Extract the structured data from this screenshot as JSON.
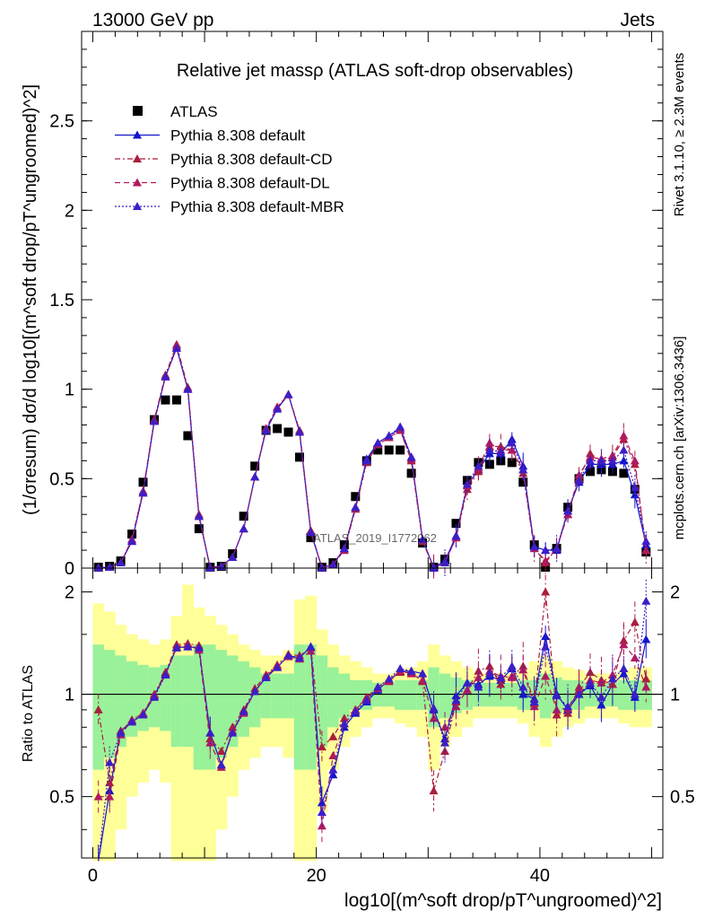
{
  "header": {
    "left": "13000 GeV pp",
    "right": "Jets"
  },
  "side": {
    "rivet": "Rivet 3.1.10, ≥ 2.3M events",
    "mcplots": "mcplots.cern.ch [arXiv:1306.3436]"
  },
  "watermark": "ATLAS_2019_I1772062",
  "chart_data": [
    {
      "type": "scatter",
      "title": "Relative jet massρ (ATLAS soft-drop observables)",
      "xlabel": "log10[(m^soft drop/pT^ungroomed)^2]",
      "ylabel": "(1/σresum) dσ/d log10[(m^soft drop/pT^ungroomed)^2]",
      "xlim": [
        -1,
        51
      ],
      "ylim": [
        0,
        3
      ],
      "yticks": [
        0,
        0.5,
        1,
        1.5,
        2,
        2.5
      ],
      "ytick_labels": [
        "0",
        "0.5",
        "1",
        "1.5",
        "2",
        "2.5"
      ],
      "legend_position": "top-left",
      "x": [
        0.5,
        1.5,
        2.5,
        3.5,
        4.5,
        5.5,
        6.5,
        7.5,
        8.5,
        9.5,
        10.5,
        11.5,
        12.5,
        13.5,
        14.5,
        15.5,
        16.5,
        17.5,
        18.5,
        19.5,
        20.5,
        21.5,
        22.5,
        23.5,
        24.5,
        25.5,
        26.5,
        27.5,
        28.5,
        29.5,
        30.5,
        31.5,
        32.5,
        33.5,
        34.5,
        35.5,
        36.5,
        37.5,
        38.5,
        39.5,
        40.5,
        41.5,
        42.5,
        43.5,
        44.5,
        45.5,
        46.5,
        47.5,
        48.5,
        49.5
      ],
      "series": [
        {
          "name": "ATLAS",
          "color": "#000000",
          "marker": "square",
          "values": [
            0.005,
            0.01,
            0.04,
            0.19,
            0.48,
            0.83,
            0.94,
            0.94,
            0.74,
            0.22,
            0.005,
            0.01,
            0.08,
            0.29,
            0.57,
            0.77,
            0.78,
            0.76,
            0.62,
            0.17,
            0.005,
            0.03,
            0.13,
            0.4,
            0.6,
            0.66,
            0.66,
            0.66,
            0.53,
            0.14,
            0.005,
            0.05,
            0.25,
            0.49,
            0.59,
            0.58,
            0.6,
            0.59,
            0.48,
            0.13,
            0.005,
            0.11,
            0.34,
            0.5,
            0.54,
            0.55,
            0.54,
            0.53,
            0.44,
            0.09
          ]
        },
        {
          "name": "Pythia 8.308 default",
          "color": "#1414cc",
          "marker": "triangle",
          "dash": "",
          "values": [
            0.002,
            0.005,
            0.03,
            0.15,
            0.42,
            0.82,
            1.07,
            1.23,
            1.0,
            0.29,
            0.002,
            0.01,
            0.06,
            0.22,
            0.51,
            0.77,
            0.89,
            0.97,
            0.76,
            0.2,
            0.002,
            0.02,
            0.11,
            0.34,
            0.61,
            0.7,
            0.74,
            0.78,
            0.62,
            0.16,
            0.002,
            0.04,
            0.18,
            0.46,
            0.55,
            0.64,
            0.64,
            0.72,
            0.57,
            0.12,
            0.1,
            0.1,
            0.32,
            0.48,
            0.58,
            0.58,
            0.58,
            0.6,
            0.41,
            0.13
          ]
        },
        {
          "name": "Pythia 8.308 default-CD",
          "color": "#aa1e3c",
          "marker": "triangle",
          "dash": "6,3,2,3",
          "values": [
            0.002,
            0.005,
            0.03,
            0.16,
            0.43,
            0.83,
            1.08,
            1.25,
            1.01,
            0.3,
            0.002,
            0.01,
            0.06,
            0.22,
            0.51,
            0.78,
            0.9,
            0.97,
            0.77,
            0.21,
            0.002,
            0.02,
            0.1,
            0.33,
            0.59,
            0.69,
            0.73,
            0.77,
            0.6,
            0.15,
            0.002,
            0.03,
            0.17,
            0.44,
            0.54,
            0.68,
            0.68,
            0.66,
            0.53,
            0.11,
            0.03,
            0.11,
            0.3,
            0.5,
            0.64,
            0.6,
            0.62,
            0.72,
            0.58,
            0.1
          ]
        },
        {
          "name": "Pythia 8.308 default-DL",
          "color": "#b01a5e",
          "marker": "triangle",
          "dash": "6,4",
          "values": [
            0.002,
            0.005,
            0.03,
            0.16,
            0.43,
            0.82,
            1.07,
            1.24,
            1.0,
            0.29,
            0.002,
            0.01,
            0.06,
            0.22,
            0.51,
            0.78,
            0.9,
            0.97,
            0.76,
            0.2,
            0.002,
            0.02,
            0.1,
            0.34,
            0.6,
            0.69,
            0.73,
            0.77,
            0.61,
            0.16,
            0.002,
            0.03,
            0.17,
            0.46,
            0.56,
            0.7,
            0.66,
            0.66,
            0.55,
            0.11,
            0.04,
            0.11,
            0.3,
            0.52,
            0.62,
            0.61,
            0.63,
            0.74,
            0.6,
            0.1
          ]
        },
        {
          "name": "Pythia 8.308 default-MBR",
          "color": "#3c1ec8",
          "marker": "triangle",
          "dash": "2,2",
          "values": [
            0.002,
            0.005,
            0.03,
            0.15,
            0.42,
            0.82,
            1.07,
            1.23,
            1.0,
            0.29,
            0.002,
            0.01,
            0.06,
            0.22,
            0.51,
            0.77,
            0.89,
            0.97,
            0.76,
            0.2,
            0.002,
            0.02,
            0.11,
            0.34,
            0.6,
            0.7,
            0.74,
            0.79,
            0.62,
            0.16,
            0.002,
            0.03,
            0.18,
            0.47,
            0.57,
            0.66,
            0.65,
            0.7,
            0.55,
            0.12,
            0.1,
            0.11,
            0.32,
            0.49,
            0.6,
            0.6,
            0.6,
            0.66,
            0.45,
            0.15
          ]
        }
      ]
    },
    {
      "type": "line",
      "ylabel": "Ratio to ATLAS",
      "xlim": [
        -1,
        51
      ],
      "ylim": [
        0.33,
        2.35
      ],
      "yscale": "log",
      "yticks": [
        0.5,
        1,
        2
      ],
      "ytick_labels": [
        "0.5",
        "1",
        "2"
      ],
      "xticks": [
        0,
        20,
        40
      ],
      "xtick_labels": [
        "0",
        "20",
        "40"
      ],
      "reference_line": 1,
      "band_colors": {
        "inner": "#99f199",
        "outer": "#ffff99"
      },
      "band_inner": [
        0.4,
        0.35,
        0.3,
        0.25,
        0.22,
        0.2,
        0.22,
        0.3,
        0.3,
        0.4,
        0.4,
        0.35,
        0.3,
        0.25,
        0.2,
        0.15,
        0.15,
        0.15,
        0.4,
        0.4,
        0.3,
        0.2,
        0.15,
        0.1,
        0.1,
        0.08,
        0.08,
        0.1,
        0.1,
        0.1,
        0.2,
        0.15,
        0.12,
        0.1,
        0.08,
        0.08,
        0.08,
        0.08,
        0.1,
        0.1,
        0.15,
        0.12,
        0.1,
        0.1,
        0.08,
        0.08,
        0.08,
        0.1,
        0.1,
        0.1
      ],
      "band_outer": [
        0.85,
        0.75,
        0.6,
        0.5,
        0.45,
        0.4,
        0.45,
        0.7,
        1.1,
        0.8,
        0.7,
        0.6,
        0.5,
        0.4,
        0.35,
        0.3,
        0.3,
        0.35,
        0.9,
        0.95,
        0.55,
        0.4,
        0.3,
        0.25,
        0.2,
        0.15,
        0.15,
        0.18,
        0.2,
        0.25,
        0.4,
        0.3,
        0.25,
        0.2,
        0.15,
        0.15,
        0.15,
        0.15,
        0.18,
        0.25,
        0.3,
        0.25,
        0.2,
        0.18,
        0.15,
        0.15,
        0.15,
        0.18,
        0.2,
        0.2
      ],
      "x": [
        0.5,
        1.5,
        2.5,
        3.5,
        4.5,
        5.5,
        6.5,
        7.5,
        8.5,
        9.5,
        10.5,
        11.5,
        12.5,
        13.5,
        14.5,
        15.5,
        16.5,
        17.5,
        18.5,
        19.5,
        20.5,
        21.5,
        22.5,
        23.5,
        24.5,
        25.5,
        26.5,
        27.5,
        28.5,
        29.5,
        30.5,
        31.5,
        32.5,
        33.5,
        34.5,
        35.5,
        36.5,
        37.5,
        38.5,
        39.5,
        40.5,
        41.5,
        42.5,
        43.5,
        44.5,
        45.5,
        46.5,
        47.5,
        48.5,
        49.5
      ],
      "series": [
        {
          "name": "Pythia 8.308 default",
          "color": "#1414cc",
          "dash": "",
          "values": [
            0.32,
            0.52,
            0.78,
            0.83,
            0.87,
            0.99,
            1.15,
            1.37,
            1.38,
            1.37,
            0.77,
            0.62,
            0.78,
            0.89,
            1.02,
            1.12,
            1.2,
            1.3,
            1.28,
            1.38,
            0.48,
            0.58,
            0.8,
            0.88,
            0.95,
            1.03,
            1.1,
            1.17,
            1.17,
            1.15,
            0.9,
            0.74,
            0.99,
            1.08,
            1.07,
            1.13,
            1.1,
            1.19,
            1.0,
            0.97,
            1.48,
            1.0,
            0.9,
            1.0,
            1.06,
            0.93,
            1.07,
            1.15,
            0.98,
            1.45
          ]
        },
        {
          "name": "Pythia 8.308 default-CD",
          "color": "#aa1e3c",
          "dash": "6,3,2,3",
          "values": [
            0.9,
            0.55,
            0.78,
            0.84,
            0.88,
            1.0,
            1.16,
            1.4,
            1.41,
            1.39,
            0.74,
            0.68,
            0.8,
            0.9,
            1.04,
            1.14,
            1.22,
            1.31,
            1.3,
            1.37,
            0.7,
            0.75,
            0.85,
            0.9,
            0.98,
            1.05,
            1.1,
            1.16,
            1.16,
            1.09,
            0.52,
            0.68,
            0.95,
            1.03,
            1.17,
            1.21,
            1.07,
            1.13,
            1.21,
            0.94,
            2.0,
            0.87,
            0.88,
            1.05,
            1.16,
            1.1,
            1.07,
            1.44,
            1.63,
            1.11
          ]
        },
        {
          "name": "Pythia 8.308 default-DL",
          "color": "#b01a5e",
          "dash": "6,4",
          "values": [
            0.5,
            0.5,
            0.76,
            0.84,
            0.88,
            0.99,
            1.14,
            1.38,
            1.4,
            1.35,
            0.72,
            0.61,
            0.78,
            0.88,
            1.02,
            1.13,
            1.21,
            1.29,
            1.27,
            1.34,
            0.41,
            0.66,
            0.82,
            0.9,
            0.97,
            1.04,
            1.09,
            1.17,
            1.15,
            1.1,
            0.85,
            0.8,
            0.92,
            1.03,
            1.12,
            1.17,
            1.13,
            1.12,
            1.18,
            0.92,
            1.13,
            0.9,
            0.91,
            1.03,
            1.1,
            1.08,
            1.14,
            1.4,
            1.28,
            1.05
          ]
        },
        {
          "name": "Pythia 8.308 default-MBR",
          "color": "#3c1ec8",
          "dash": "2,2",
          "values": [
            0.3,
            0.63,
            0.77,
            0.83,
            0.87,
            0.98,
            1.14,
            1.37,
            1.38,
            1.37,
            0.77,
            0.62,
            0.77,
            0.89,
            1.02,
            1.12,
            1.2,
            1.3,
            1.28,
            1.38,
            0.45,
            0.6,
            0.82,
            0.89,
            0.96,
            1.05,
            1.11,
            1.19,
            1.17,
            1.15,
            0.91,
            0.72,
            0.96,
            1.08,
            1.05,
            1.15,
            1.12,
            1.21,
            1.05,
            0.95,
            1.38,
            0.99,
            0.92,
            1.0,
            1.08,
            0.98,
            1.11,
            1.19,
            1.0,
            1.88
          ]
        }
      ]
    }
  ]
}
